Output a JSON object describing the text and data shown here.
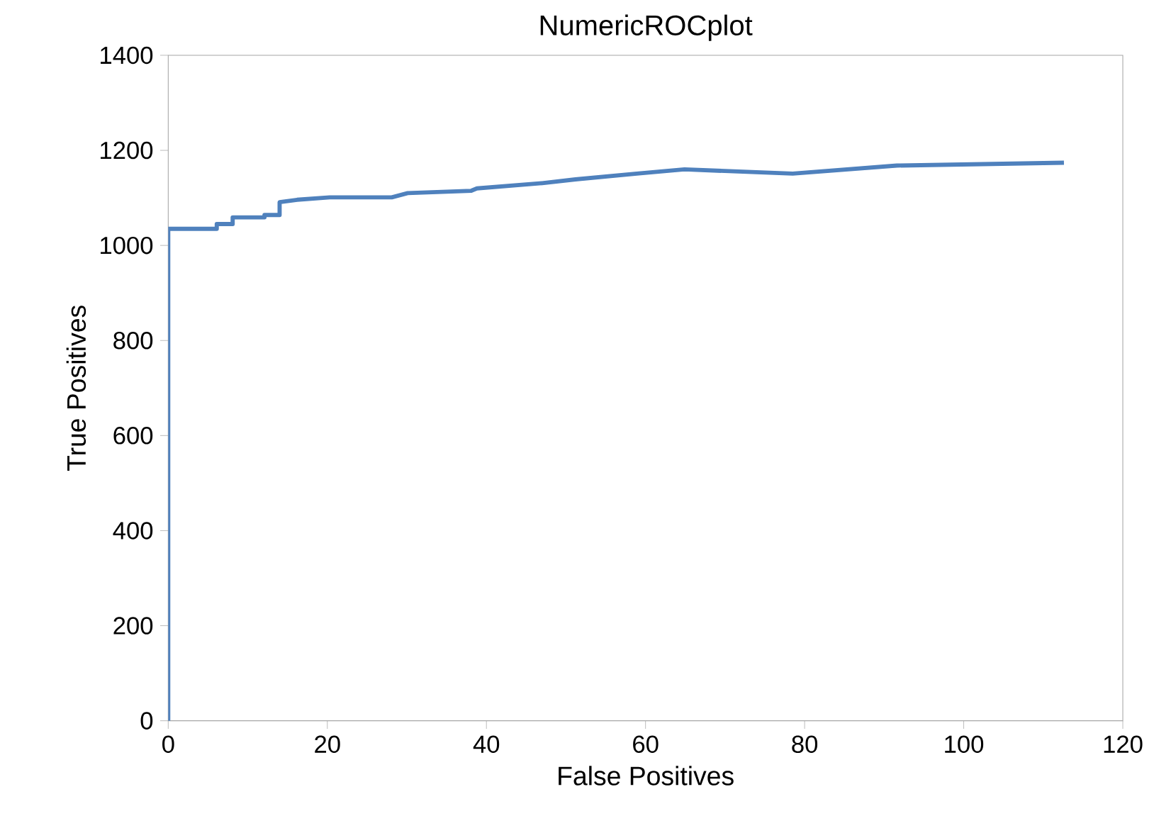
{
  "chart_data": {
    "type": "line",
    "title": "NumericROCplot",
    "xlabel": "False Positives",
    "ylabel": "True Positives",
    "x": [
      0,
      0,
      6.1,
      6.1,
      8.1,
      8.1,
      12.1,
      12.1,
      14,
      14,
      16.2,
      20.3,
      28.1,
      30.1,
      38.1,
      38.8,
      47,
      51.2,
      58.9,
      64.9,
      78.5,
      91.6,
      112.6
    ],
    "values": [
      0,
      1035,
      1035,
      1045,
      1045,
      1059,
      1059,
      1064,
      1064,
      1091,
      1096,
      1101,
      1101,
      1110,
      1115,
      1120,
      1131,
      1139,
      1151,
      1160,
      1151,
      1168,
      1174
    ],
    "color": "#4f81bd",
    "xlim": [
      0,
      120
    ],
    "ylim": [
      0,
      1400
    ],
    "xticks": [
      0,
      20,
      40,
      60,
      80,
      100,
      120
    ],
    "yticks": [
      0,
      200,
      400,
      600,
      800,
      1000,
      1200,
      1400
    ],
    "grid": false,
    "marker": "none",
    "line_style": "solid"
  }
}
